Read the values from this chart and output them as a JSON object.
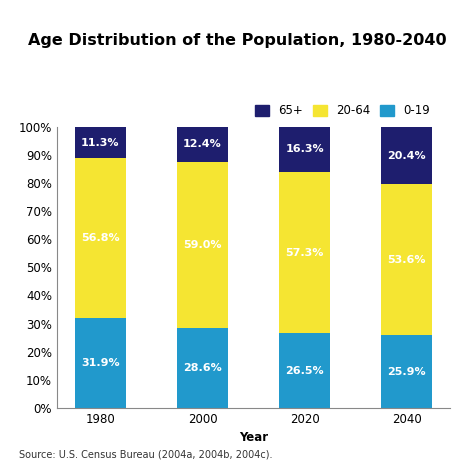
{
  "title": "Age Distribution of the Population, 1980-2040",
  "years": [
    "1980",
    "2000",
    "2020",
    "2040"
  ],
  "segments": {
    "0-19": [
      31.9,
      28.6,
      26.5,
      25.9
    ],
    "20-64": [
      56.8,
      59.0,
      57.3,
      53.6
    ],
    "65+": [
      11.3,
      12.4,
      16.3,
      20.4
    ]
  },
  "colors": {
    "0-19": "#2199cc",
    "20-64": "#f5e532",
    "65+": "#1e1e6e"
  },
  "legend_order": [
    "65+",
    "20-64",
    "0-19"
  ],
  "xlabel": "Year",
  "ytick_labels": [
    "0%",
    "10%",
    "20%",
    "30%",
    "40%",
    "50%",
    "60%",
    "70%",
    "80%",
    "90%",
    "100%"
  ],
  "yticks": [
    0,
    10,
    20,
    30,
    40,
    50,
    60,
    70,
    80,
    90,
    100
  ],
  "source_text": "Source: U.S. Census Bureau (2004a, 2004b, 2004c).",
  "title_fontsize": 11.5,
  "label_fontsize": 8.5,
  "tick_fontsize": 8.5,
  "source_fontsize": 7,
  "legend_fontsize": 8.5,
  "bar_label_fontsize": 8,
  "bar_width": 0.5,
  "background_color": "#ffffff"
}
